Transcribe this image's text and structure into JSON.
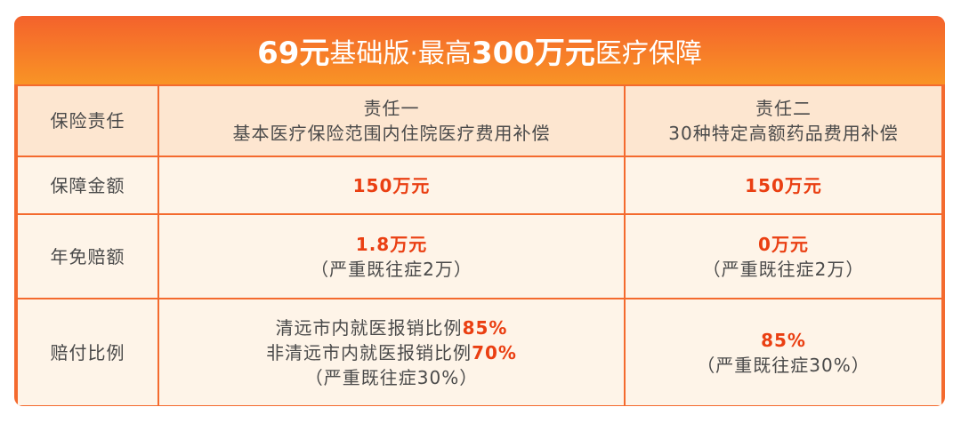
{
  "title": {
    "part1": "69元",
    "part2": "基础版·最高",
    "part3": "300万元",
    "part4": "医疗保障"
  },
  "rows": [
    {
      "label": "保险责任",
      "c1": [
        "责任一",
        "基本医疗保险范围内住院医疗费用补偿"
      ],
      "c2": [
        "责任二",
        "30种特定高额药品费用补偿"
      ]
    },
    {
      "label": "保障金额",
      "c1": "150万元",
      "c2": "150万元"
    },
    {
      "label": "年免赔额",
      "c1": [
        "1.8万元",
        "（严重既往症2万）"
      ],
      "c2": [
        "0万元",
        "（严重既往症2万）"
      ]
    },
    {
      "label": "赔付比例",
      "c1": {
        "l1": "清远市内就医报销比例",
        "v1": "85%",
        "l2": "非清远市内就医报销比例",
        "v2": "70%",
        "l3": "（严重既往症30%）"
      },
      "c2": [
        "85%",
        "（严重既往症30%）"
      ]
    }
  ],
  "colors": {
    "accent": "#f46a2e",
    "highlight": "#ea3f12"
  }
}
